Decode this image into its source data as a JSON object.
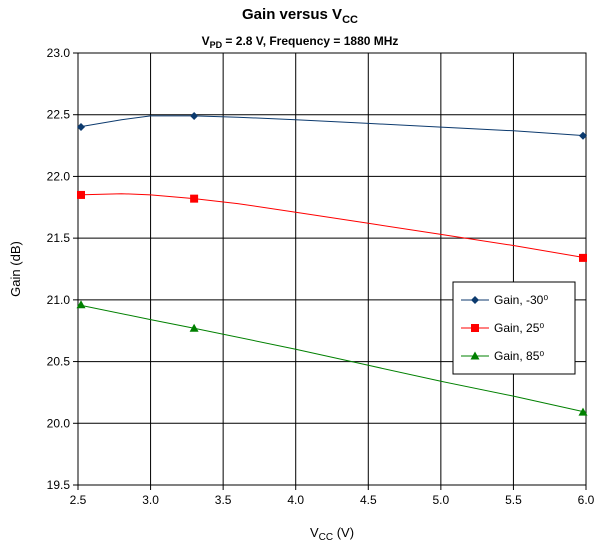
{
  "chart_data": {
    "type": "line",
    "title": {
      "main": "Gain versus V",
      "sub": "CC"
    },
    "subtitle": {
      "p1": "V",
      "p1sub": "PD",
      "p2": " = 2.8 V, Frequency = 1880 MHz"
    },
    "xlabel": {
      "main": "V",
      "sub": "CC",
      "rest": " (V)"
    },
    "ylabel": "Gain (dB)",
    "xlim": [
      2.5,
      6.0
    ],
    "ylim": [
      19.5,
      23.0
    ],
    "xticks": [
      "2.5",
      "3.0",
      "3.5",
      "4.0",
      "4.5",
      "5.0",
      "5.5",
      "6.0"
    ],
    "yticks": [
      "19.5",
      "20.0",
      "20.5",
      "21.0",
      "21.5",
      "22.0",
      "22.5",
      "23.0"
    ],
    "grid": true,
    "legend_position": "right",
    "series": [
      {
        "name": "Gain, -30⁰",
        "color": "#0c3a6e",
        "marker": "diamond",
        "curve": [
          [
            2.5,
            22.4
          ],
          [
            2.8,
            22.46
          ],
          [
            3.0,
            22.49
          ],
          [
            3.3,
            22.49
          ],
          [
            3.6,
            22.48
          ],
          [
            4.0,
            22.46
          ],
          [
            4.5,
            22.43
          ],
          [
            5.0,
            22.4
          ],
          [
            5.5,
            22.37
          ],
          [
            6.0,
            22.33
          ]
        ],
        "markers": [
          [
            2.5,
            22.4
          ],
          [
            3.3,
            22.49
          ],
          [
            6.0,
            22.33
          ]
        ]
      },
      {
        "name": "Gain, 25⁰",
        "color": "#ff0000",
        "marker": "square",
        "curve": [
          [
            2.5,
            21.85
          ],
          [
            2.8,
            21.86
          ],
          [
            3.0,
            21.85
          ],
          [
            3.3,
            21.82
          ],
          [
            3.6,
            21.78
          ],
          [
            4.0,
            21.71
          ],
          [
            4.5,
            21.62
          ],
          [
            5.0,
            21.53
          ],
          [
            5.5,
            21.44
          ],
          [
            6.0,
            21.34
          ]
        ],
        "markers": [
          [
            2.5,
            21.85
          ],
          [
            3.3,
            21.82
          ],
          [
            6.0,
            21.34
          ]
        ]
      },
      {
        "name": "Gain, 85⁰",
        "color": "#008000",
        "marker": "triangle",
        "curve": [
          [
            2.5,
            20.96
          ],
          [
            3.0,
            20.84
          ],
          [
            3.3,
            20.77
          ],
          [
            4.0,
            20.6
          ],
          [
            4.5,
            20.47
          ],
          [
            5.0,
            20.34
          ],
          [
            5.5,
            20.22
          ],
          [
            6.0,
            20.09
          ]
        ],
        "markers": [
          [
            2.5,
            20.96
          ],
          [
            3.3,
            20.77
          ],
          [
            6.0,
            20.09
          ]
        ]
      }
    ]
  }
}
